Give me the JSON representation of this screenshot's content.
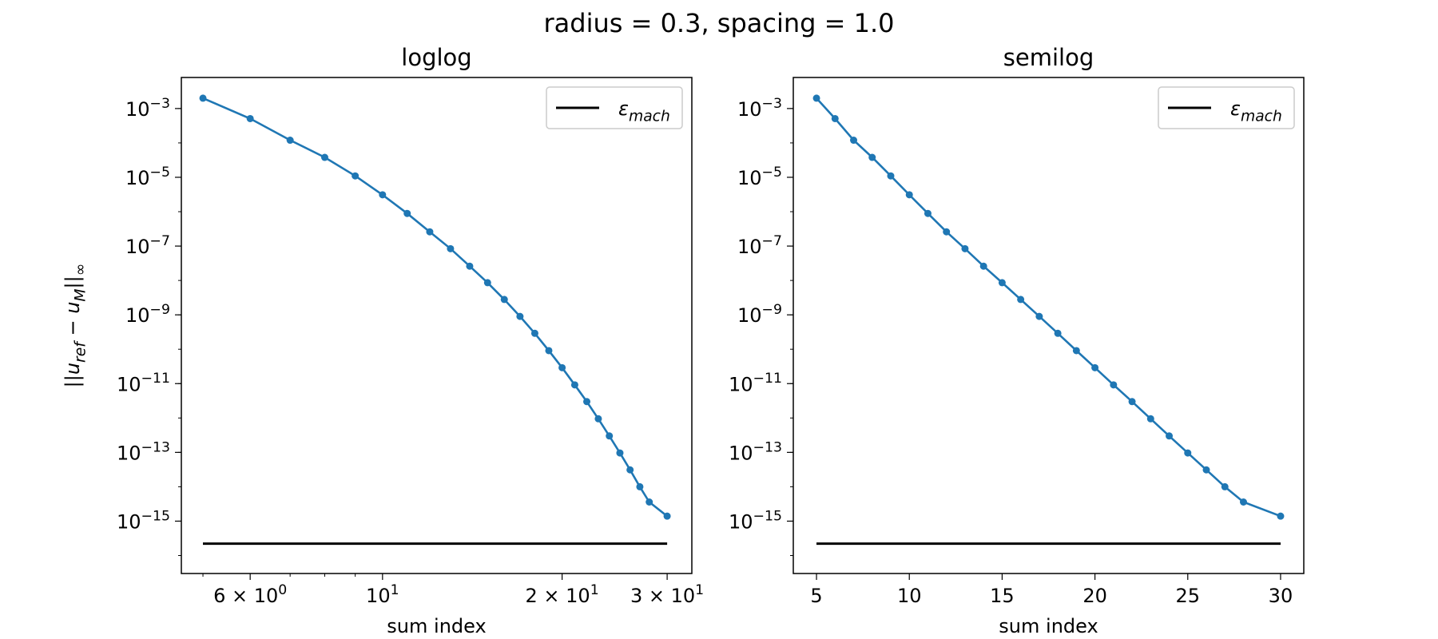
{
  "figure": {
    "suptitle": "radius = 0.3, spacing = 1.0"
  },
  "chart_data": [
    {
      "type": "line",
      "title": "loglog",
      "xlabel": "sum index",
      "ylabel": "||u_ref − u_M||_∞",
      "xscale": "log",
      "yscale": "log",
      "xlim": [
        4.6,
        33
      ],
      "ylim": [
        3e-17,
        0.008
      ],
      "x_ticks": [
        {
          "value": 6,
          "label": "6 × 10^0"
        },
        {
          "value": 10,
          "label": "10^1"
        },
        {
          "value": 20,
          "label": "2 × 10^1"
        },
        {
          "value": 30,
          "label": "3 × 10^1"
        }
      ],
      "y_ticks": [
        {
          "value": 0.001,
          "label": "10^−3"
        },
        {
          "value": 1e-05,
          "label": "10^−5"
        },
        {
          "value": 1e-07,
          "label": "10^−7"
        },
        {
          "value": 1e-09,
          "label": "10^−9"
        },
        {
          "value": 1e-11,
          "label": "10^−11"
        },
        {
          "value": 1e-13,
          "label": "10^−13"
        },
        {
          "value": 1e-15,
          "label": "10^−15"
        }
      ],
      "grid": false,
      "legend": "top-right",
      "series": [
        {
          "name": "",
          "color": "#1f77b4",
          "marker": "circle",
          "x": [
            5,
            6,
            7,
            8,
            9,
            10,
            11,
            12,
            13,
            14,
            15,
            16,
            17,
            18,
            19,
            20,
            21,
            22,
            23,
            24,
            25,
            26,
            27,
            28,
            30
          ],
          "y": [
            0.002,
            0.00051,
            0.00012,
            3.8e-05,
            1.1e-05,
            3.1e-06,
            8.9e-07,
            2.6e-07,
            8.4e-08,
            2.6e-08,
            8.6e-09,
            2.8e-09,
            9e-10,
            2.9e-10,
            9.1e-11,
            2.9e-11,
            9.2e-12,
            3e-12,
            9.5e-13,
            3e-13,
            9.6e-14,
            3.1e-14,
            1e-14,
            3.6e-15,
            1.4e-15
          ]
        },
        {
          "name": "ε_mach",
          "color": "#000000",
          "marker": "none",
          "x": [
            5,
            30
          ],
          "y": [
            2.22e-16,
            2.22e-16
          ]
        }
      ]
    },
    {
      "type": "line",
      "title": "semilog",
      "xlabel": "sum index",
      "ylabel": "",
      "xscale": "linear",
      "yscale": "log",
      "xlim": [
        3.75,
        31.25
      ],
      "ylim": [
        3e-17,
        0.008
      ],
      "x_ticks": [
        {
          "value": 5,
          "label": "5"
        },
        {
          "value": 10,
          "label": "10"
        },
        {
          "value": 15,
          "label": "15"
        },
        {
          "value": 20,
          "label": "20"
        },
        {
          "value": 25,
          "label": "25"
        },
        {
          "value": 30,
          "label": "30"
        }
      ],
      "y_ticks": [
        {
          "value": 0.001,
          "label": "10^−3"
        },
        {
          "value": 1e-05,
          "label": "10^−5"
        },
        {
          "value": 1e-07,
          "label": "10^−7"
        },
        {
          "value": 1e-09,
          "label": "10^−9"
        },
        {
          "value": 1e-11,
          "label": "10^−11"
        },
        {
          "value": 1e-13,
          "label": "10^−13"
        },
        {
          "value": 1e-15,
          "label": "10^−15"
        }
      ],
      "grid": false,
      "legend": "top-right",
      "series": [
        {
          "name": "",
          "color": "#1f77b4",
          "marker": "circle",
          "x": [
            5,
            6,
            7,
            8,
            9,
            10,
            11,
            12,
            13,
            14,
            15,
            16,
            17,
            18,
            19,
            20,
            21,
            22,
            23,
            24,
            25,
            26,
            27,
            28,
            30
          ],
          "y": [
            0.002,
            0.00051,
            0.00012,
            3.8e-05,
            1.1e-05,
            3.1e-06,
            8.9e-07,
            2.6e-07,
            8.4e-08,
            2.6e-08,
            8.6e-09,
            2.8e-09,
            9e-10,
            2.9e-10,
            9.1e-11,
            2.9e-11,
            9.2e-12,
            3e-12,
            9.5e-13,
            3e-13,
            9.6e-14,
            3.1e-14,
            1e-14,
            3.6e-15,
            1.4e-15
          ]
        },
        {
          "name": "ε_mach",
          "color": "#000000",
          "marker": "none",
          "x": [
            5,
            30
          ],
          "y": [
            2.22e-16,
            2.22e-16
          ]
        }
      ]
    }
  ]
}
